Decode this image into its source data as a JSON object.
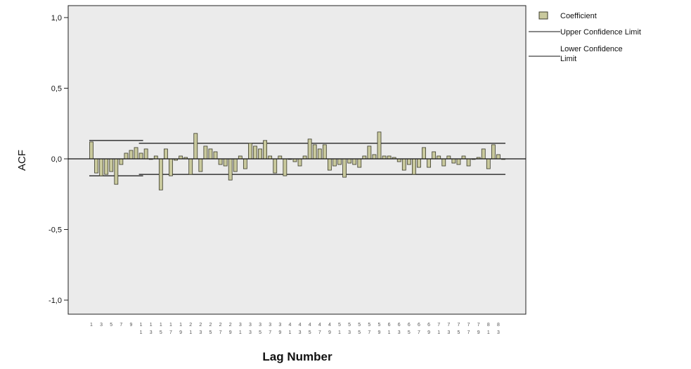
{
  "chart_data": {
    "type": "bar",
    "xlabel": "Lag Number",
    "ylabel": "ACF",
    "ylim": [
      -1.0,
      1.0
    ],
    "yticks": [
      "1,0",
      "0,5",
      "0,0",
      "-0,5",
      "-1,0"
    ],
    "ytick_values": [
      1.0,
      0.5,
      0.0,
      -0.5,
      -1.0
    ],
    "grid": false,
    "legend_placement": "top-right",
    "legend": [
      {
        "label": "Coefficient",
        "kind": "bar"
      },
      {
        "label": "Upper Confidence Limit",
        "kind": "line"
      },
      {
        "label": "Lower Confidence Limit",
        "kind": "line"
      }
    ],
    "colors": {
      "plot_background": "#ebebeb",
      "bar_fill": "#c9c99d",
      "bar_stroke": "#3a3a2a",
      "limit_line": "#111111"
    },
    "x": [
      1,
      2,
      3,
      4,
      5,
      6,
      7,
      8,
      9,
      10,
      11,
      12,
      13,
      14,
      15,
      16,
      17,
      18,
      19,
      20,
      21,
      22,
      23,
      24,
      25,
      26,
      27,
      28,
      29,
      30,
      31,
      32,
      33,
      34,
      35,
      36,
      37,
      38,
      39,
      40,
      41,
      42,
      43,
      44,
      45,
      46,
      47,
      48,
      49,
      50,
      51,
      52,
      53,
      54,
      55,
      56,
      57,
      58,
      59,
      60,
      61,
      62,
      63,
      64,
      65,
      66,
      67,
      68,
      69,
      70,
      71,
      72,
      73,
      74,
      75,
      76,
      77,
      78,
      79,
      80,
      81,
      82,
      83,
      84
    ],
    "values": [
      0.12,
      -0.1,
      -0.12,
      -0.11,
      -0.09,
      -0.18,
      -0.04,
      0.04,
      0.06,
      0.08,
      0.04,
      0.07,
      0.0,
      0.02,
      -0.22,
      0.07,
      -0.12,
      -0.01,
      0.02,
      0.01,
      -0.11,
      0.18,
      -0.09,
      0.09,
      0.07,
      0.05,
      -0.04,
      -0.05,
      -0.15,
      -0.09,
      0.02,
      -0.07,
      0.11,
      0.09,
      0.07,
      0.13,
      0.02,
      -0.1,
      0.02,
      -0.12,
      0.0,
      -0.02,
      -0.05,
      0.02,
      0.14,
      0.1,
      0.07,
      0.1,
      -0.08,
      -0.05,
      -0.04,
      -0.13,
      -0.03,
      -0.04,
      -0.06,
      0.02,
      0.09,
      0.03,
      0.19,
      0.02,
      0.02,
      0.01,
      -0.02,
      -0.08,
      -0.04,
      -0.11,
      -0.06,
      0.08,
      -0.06,
      0.05,
      0.02,
      -0.05,
      0.02,
      -0.03,
      -0.04,
      0.02,
      -0.05,
      0.0,
      0.01,
      0.07,
      -0.07,
      0.1,
      0.03,
      0.0
    ],
    "upper_confidence_limit": [
      {
        "from_lag": 1,
        "to_lag": 11,
        "value": 0.13
      },
      {
        "from_lag": 11,
        "to_lag": 84,
        "value": 0.11
      }
    ],
    "lower_confidence_limit": [
      {
        "from_lag": 1,
        "to_lag": 11,
        "value": -0.12
      },
      {
        "from_lag": 11,
        "to_lag": 84,
        "value": -0.11
      }
    ],
    "xtick_labels_row1": [
      "1",
      "3",
      "5",
      "7",
      "9",
      "1",
      "1",
      "1",
      "1",
      "1",
      "2",
      "2",
      "2",
      "2",
      "2",
      "3",
      "3",
      "3",
      "3",
      "3",
      "4",
      "4",
      "4",
      "4",
      "4",
      "5",
      "5",
      "5",
      "5",
      "5",
      "6",
      "6",
      "6",
      "6",
      "6",
      "7",
      "7",
      "7",
      "7",
      "7",
      "8",
      "8"
    ],
    "xtick_labels_row2": [
      "",
      "",
      "",
      "",
      "",
      "1",
      "3",
      "5",
      "7",
      "9",
      "1",
      "3",
      "5",
      "7",
      "9",
      "1",
      "3",
      "5",
      "7",
      "9",
      "1",
      "3",
      "5",
      "7",
      "9",
      "1",
      "3",
      "5",
      "7",
      "9",
      "1",
      "3",
      "5",
      "7",
      "9",
      "1",
      "3",
      "5",
      "7",
      "9",
      "1",
      "3"
    ]
  }
}
